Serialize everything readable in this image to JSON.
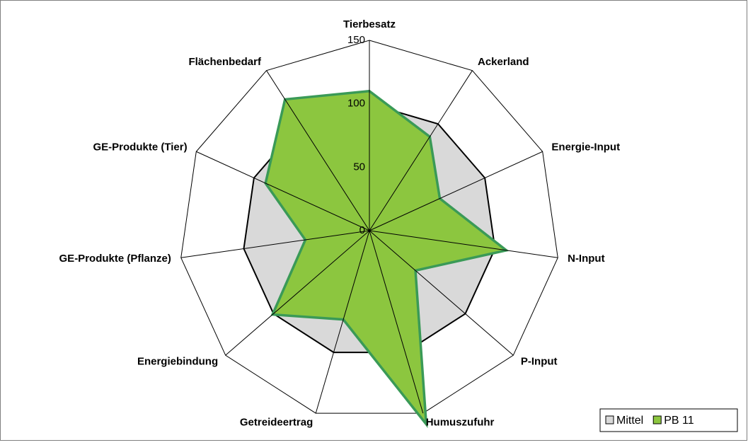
{
  "chart_data": {
    "type": "radar",
    "categories": [
      "Tierbesatz",
      "Ackerland",
      "Energie-Input",
      "N-Input",
      "P-Input",
      "Humuszufuhr",
      "Getreideertrag",
      "Energiebindung",
      "GE-Produkte (Pflanze)",
      "GE-Produkte (Tier)",
      "Flächenbedarf"
    ],
    "series": [
      {
        "name": "Mittel",
        "color": "#d9d9d9",
        "values": [
          100,
          100,
          100,
          100,
          100,
          100,
          100,
          100,
          100,
          100,
          100
        ]
      },
      {
        "name": "PB 11",
        "color": "#8cc63f",
        "values": [
          110,
          88,
          61,
          109,
          48,
          159,
          73,
          101,
          51,
          90,
          123
        ]
      }
    ],
    "ylim": [
      0,
      150
    ],
    "yticks": [
      0,
      50,
      100,
      150
    ],
    "grid": true,
    "legend": "bottom-right"
  }
}
